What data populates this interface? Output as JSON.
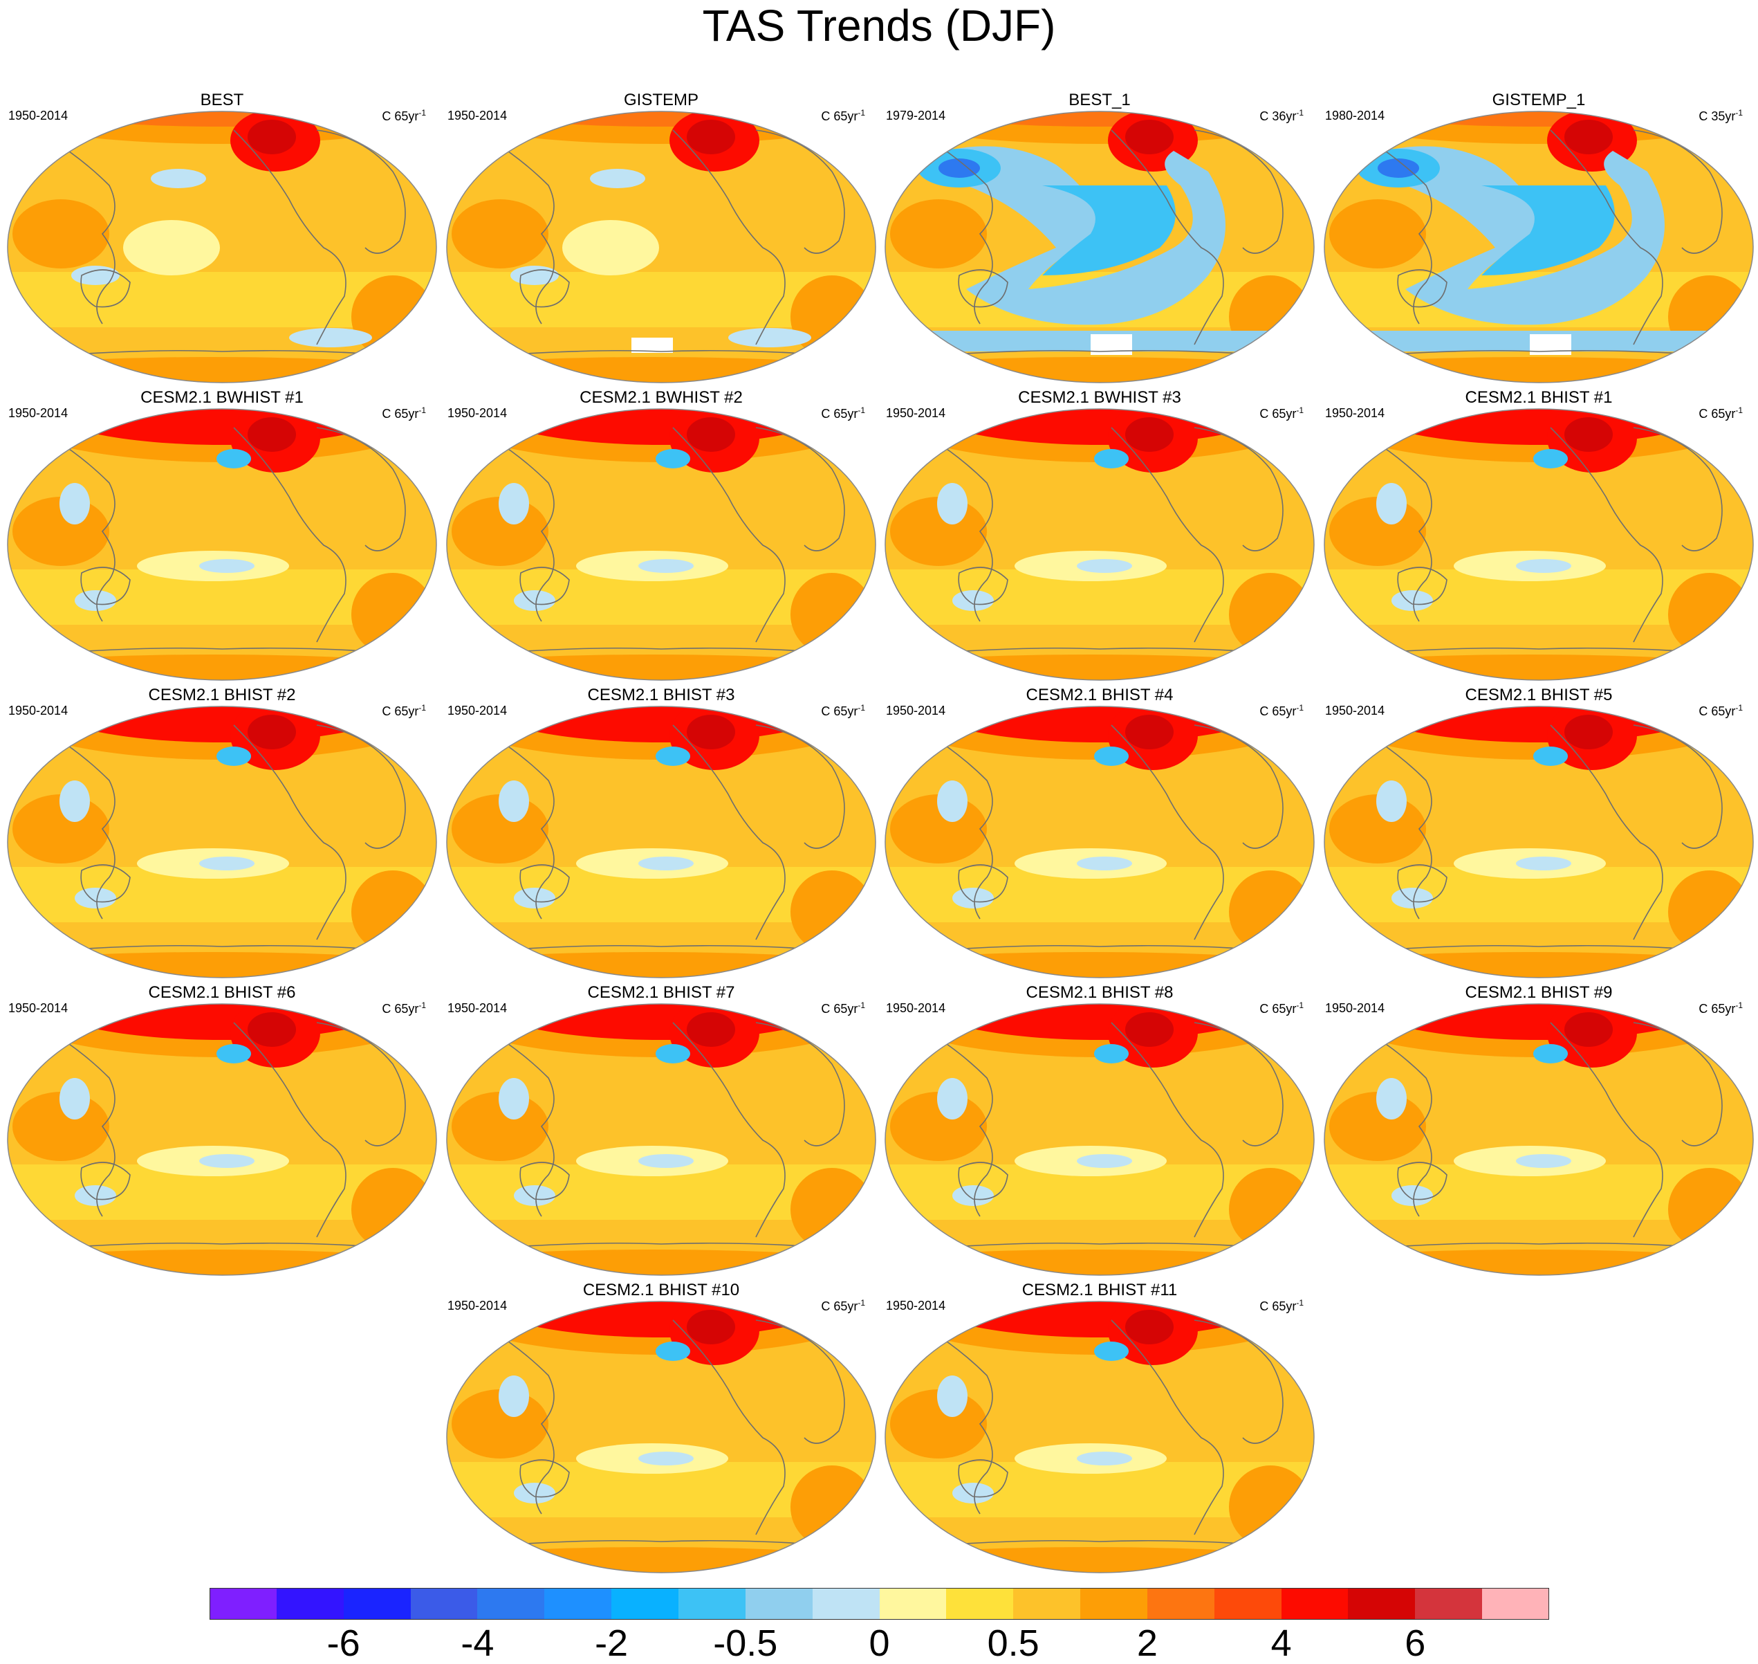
{
  "title": "TAS Trends (DJF)",
  "unit_base": "C ",
  "unit_exponent": "-1",
  "panels": [
    {
      "title": "BEST",
      "period": "1950-2014",
      "trend_len": "65yr",
      "pattern": "obs_long"
    },
    {
      "title": "GISTEMP",
      "period": "1950-2014",
      "trend_len": "65yr",
      "pattern": "obs_long_gis"
    },
    {
      "title": "BEST_1",
      "period": "1979-2014",
      "trend_len": "36yr",
      "pattern": "obs_short"
    },
    {
      "title": "GISTEMP_1",
      "period": "1980-2014",
      "trend_len": "35yr",
      "pattern": "obs_short_gis"
    },
    {
      "title": "CESM2.1 BWHIST #1",
      "period": "1950-2014",
      "trend_len": "65yr",
      "pattern": "model"
    },
    {
      "title": "CESM2.1 BWHIST #2",
      "period": "1950-2014",
      "trend_len": "65yr",
      "pattern": "model"
    },
    {
      "title": "CESM2.1 BWHIST #3",
      "period": "1950-2014",
      "trend_len": "65yr",
      "pattern": "model"
    },
    {
      "title": "CESM2.1 BHIST #1",
      "period": "1950-2014",
      "trend_len": "65yr",
      "pattern": "model"
    },
    {
      "title": "CESM2.1 BHIST #2",
      "period": "1950-2014",
      "trend_len": "65yr",
      "pattern": "model"
    },
    {
      "title": "CESM2.1 BHIST #3",
      "period": "1950-2014",
      "trend_len": "65yr",
      "pattern": "model"
    },
    {
      "title": "CESM2.1 BHIST #4",
      "period": "1950-2014",
      "trend_len": "65yr",
      "pattern": "model"
    },
    {
      "title": "CESM2.1 BHIST #5",
      "period": "1950-2014",
      "trend_len": "65yr",
      "pattern": "model"
    },
    {
      "title": "CESM2.1 BHIST #6",
      "period": "1950-2014",
      "trend_len": "65yr",
      "pattern": "model"
    },
    {
      "title": "CESM2.1 BHIST #7",
      "period": "1950-2014",
      "trend_len": "65yr",
      "pattern": "model"
    },
    {
      "title": "CESM2.1 BHIST #8",
      "period": "1950-2014",
      "trend_len": "65yr",
      "pattern": "model"
    },
    {
      "title": "CESM2.1 BHIST #9",
      "period": "1950-2014",
      "trend_len": "65yr",
      "pattern": "model"
    },
    {
      "title": "CESM2.1 BHIST #10",
      "period": "1950-2014",
      "trend_len": "65yr",
      "pattern": "model"
    },
    {
      "title": "CESM2.1 BHIST #11",
      "period": "1950-2014",
      "trend_len": "65yr",
      "pattern": "model"
    }
  ],
  "colorbar": {
    "colors": [
      "#7f1fff",
      "#3314ff",
      "#1a24ff",
      "#3b5be8",
      "#2d79f0",
      "#1e90ff",
      "#09b1ff",
      "#3dc2f5",
      "#90cfee",
      "#bfe3f5",
      "#fff79e",
      "#fee13a",
      "#fdc22a",
      "#fd9e06",
      "#fd7511",
      "#fd4a0a",
      "#fd0b00",
      "#d50505",
      "#d4343c",
      "#ffb3b8"
    ],
    "tick_labels": [
      "-6",
      "-4",
      "-2",
      "-0.5",
      "0",
      "0.5",
      "2",
      "4",
      "6"
    ]
  },
  "map_colors": {
    "cold_strong": "#2d79f0",
    "cold": "#3dc2f5",
    "cool": "#90cfee",
    "pale_cool": "#bfe3f5",
    "neutral": "#fff79e",
    "light_warm": "#fee13a",
    "warm": "#fdc22a",
    "warmer": "#fd9e06",
    "hot": "#fd7511",
    "very_hot": "#fd0b00",
    "extreme": "#d50505",
    "land_outline": "#6e6e6e",
    "missing": "#ffffff"
  }
}
